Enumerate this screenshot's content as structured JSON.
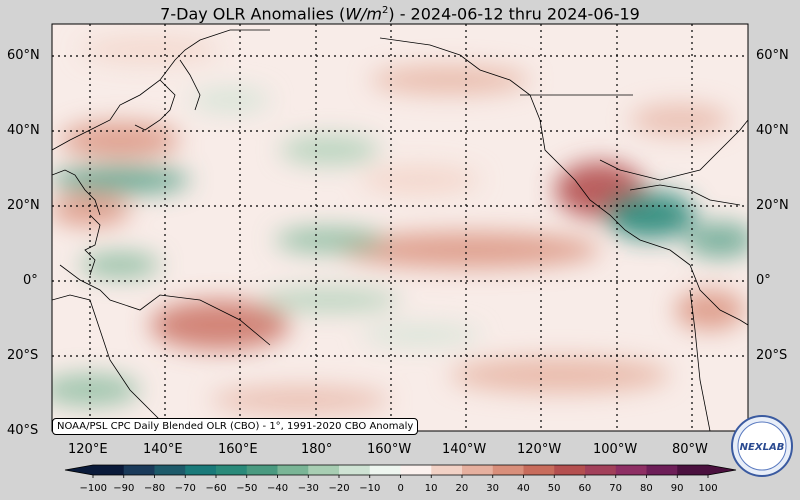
{
  "title": "7-Day OLR Anomalies (W/m²) - 2024-06-12 thru 2024-06-19",
  "title_parts": {
    "prefix": "7-Day OLR Anomalies (",
    "unit_base": "W/m",
    "unit_exp": "2",
    "suffix": ") - 2024-06-12 thru 2024-06-19"
  },
  "lat_labels": [
    "60°N",
    "40°N",
    "20°N",
    "0°",
    "20°S",
    "40°S"
  ],
  "lon_labels": [
    "120°E",
    "140°E",
    "160°E",
    "180°",
    "160°W",
    "140°W",
    "120°W",
    "100°W",
    "80°W"
  ],
  "credit": "NOAA/PSL CPC Daily Blended OLR (CBO) - 1°, 1991-2020 CBO Anomaly",
  "colorbar": {
    "ticks": [
      "−100",
      "−90",
      "−80",
      "−70",
      "−60",
      "−50",
      "−40",
      "−30",
      "−20",
      "−10",
      "0",
      "10",
      "20",
      "30",
      "40",
      "50",
      "60",
      "70",
      "80",
      "90",
      "100"
    ],
    "colors": [
      "#0a1a3a",
      "#1a3a5a",
      "#1d5a6a",
      "#1a7a7a",
      "#2a8a7a",
      "#4a9a80",
      "#7ab596",
      "#a8ceb3",
      "#cfe3d4",
      "#eef6f0",
      "#fbf1ee",
      "#f2d2c6",
      "#e6b09f",
      "#d98f7b",
      "#c86c5c",
      "#b44f4f",
      "#a2405a",
      "#8e2f64",
      "#6d1e58",
      "#4a103e"
    ]
  },
  "logo_text": "NEXLAB",
  "colors": {
    "land_outline": "#000000",
    "grid": "#000000",
    "background": "#d3d3d3"
  }
}
